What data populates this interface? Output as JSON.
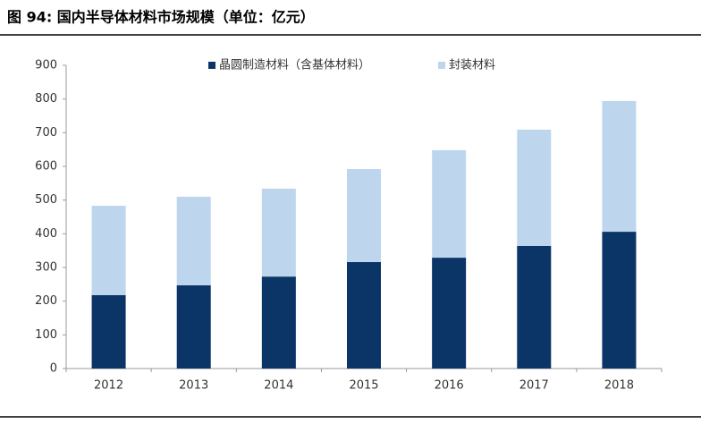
{
  "chart_data": {
    "type": "stacked_bar",
    "title": "图 94:  国内半导体材料市场规模（单位：亿元）",
    "categories": [
      "2012",
      "2013",
      "2014",
      "2015",
      "2016",
      "2017",
      "2018"
    ],
    "series": [
      {
        "name": "晶圆制造材料（含基体材料）",
        "color": "#0b3467",
        "values": [
          218,
          247,
          273,
          316,
          329,
          364,
          406
        ]
      },
      {
        "name": "封装材料",
        "color": "#bdd6ee",
        "values": [
          265,
          263,
          261,
          276,
          319,
          345,
          388
        ]
      }
    ],
    "ylim": [
      0,
      900
    ],
    "yticks": [
      0,
      100,
      200,
      300,
      400,
      500,
      600,
      700,
      800,
      900
    ],
    "grid": false
  }
}
